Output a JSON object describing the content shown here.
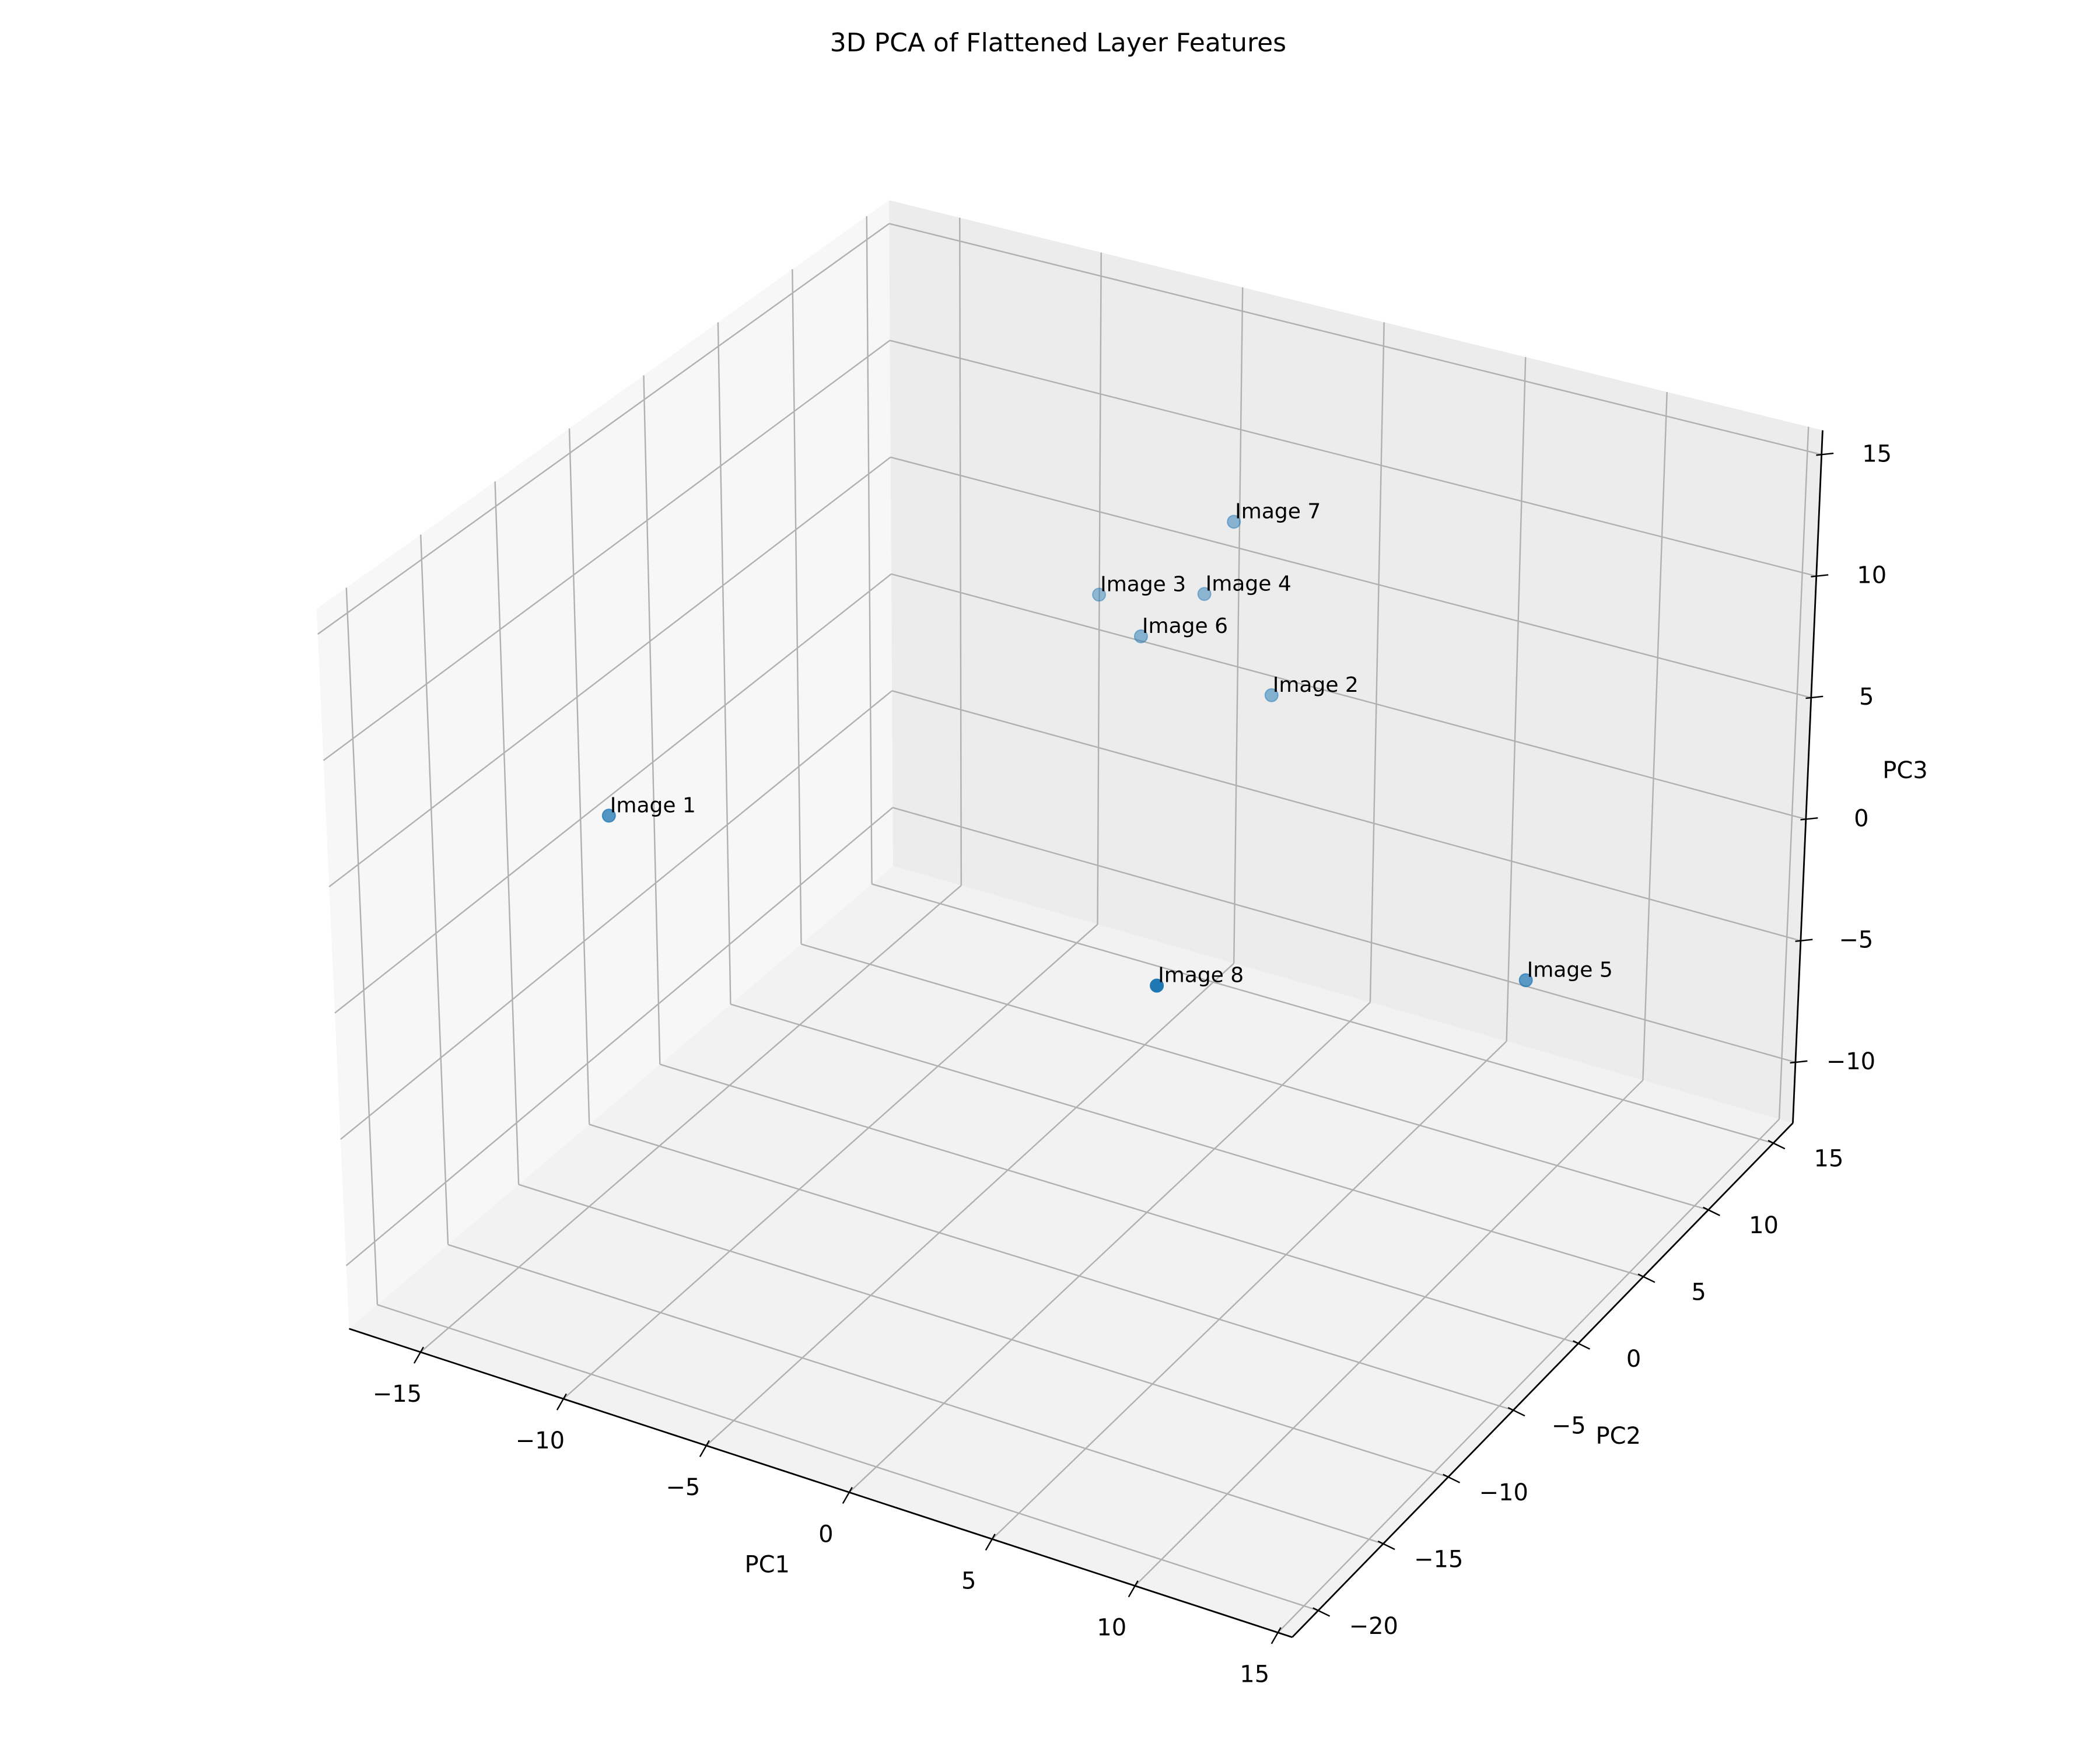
{
  "chart_data": {
    "type": "scatter",
    "projection": "3d",
    "title": "3D PCA of Flattened Layer Features",
    "xlabel": "PC1",
    "ylabel": "PC2",
    "zlabel": "PC3",
    "xlim": [
      -17.5,
      15.5
    ],
    "ylim": [
      -22,
      16.5
    ],
    "zlim": [
      -12.5,
      16
    ],
    "xticks": [
      -15,
      -10,
      -5,
      0,
      5,
      10,
      15
    ],
    "yticks": [
      -20,
      -15,
      -10,
      -5,
      0,
      5,
      10,
      15
    ],
    "zticks": [
      -10,
      -5,
      0,
      5,
      10,
      15
    ],
    "grid": true,
    "legend": "none",
    "marker_color": "#1f77b4",
    "points": [
      {
        "label": "Image 1",
        "x": -16.5,
        "y": -5.0,
        "z": 0.5
      },
      {
        "label": "Image 2",
        "x": -1.0,
        "y": 10.8,
        "z": 3.0
      },
      {
        "label": "Image 3",
        "x": -9.0,
        "y": 14.5,
        "z": 2.8
      },
      {
        "label": "Image 4",
        "x": -4.5,
        "y": 13.0,
        "z": 5.0
      },
      {
        "label": "Image 5",
        "x": 14.0,
        "y": -2.0,
        "z": 3.0
      },
      {
        "label": "Image 6",
        "x": -6.0,
        "y": 11.5,
        "z": 3.5
      },
      {
        "label": "Image 7",
        "x": -3.0,
        "y": 12.0,
        "z": 9.0
      },
      {
        "label": "Image 8",
        "x": 9.5,
        "y": -20.5,
        "z": 11.0
      }
    ]
  }
}
